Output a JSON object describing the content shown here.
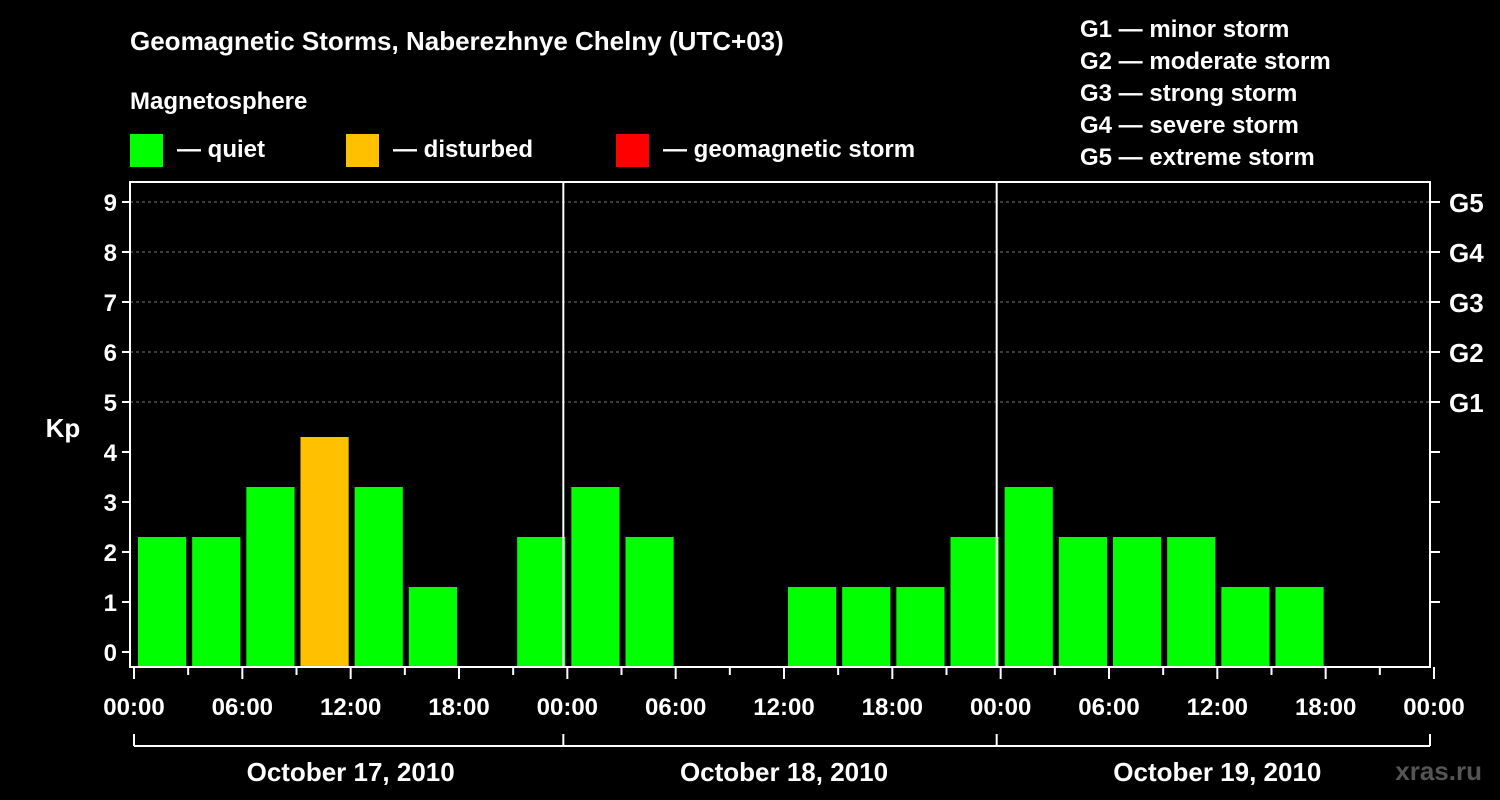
{
  "chart_data": {
    "type": "bar",
    "title": "Geomagnetic Storms, Naberezhnye Chelny (UTC+03)",
    "legend_title": "Magnetosphere",
    "legend": [
      {
        "label": "— quiet",
        "color": "#00ff00"
      },
      {
        "label": "— disturbed",
        "color": "#ffc000"
      },
      {
        "label": "— geomagnetic storm",
        "color": "#ff0000"
      }
    ],
    "storm_scale": [
      "G1 — minor storm",
      "G2 — moderate storm",
      "G3 — strong storm",
      "G4 — severe storm",
      "G5 — extreme storm"
    ],
    "ylabel": "Kp",
    "ylim": [
      0,
      9
    ],
    "yticks": [
      "0",
      "1",
      "2",
      "3",
      "4",
      "5",
      "6",
      "7",
      "8",
      "9"
    ],
    "right_ticks": [
      {
        "kp": 5,
        "label": "G1"
      },
      {
        "kp": 6,
        "label": "G2"
      },
      {
        "kp": 7,
        "label": "G3"
      },
      {
        "kp": 8,
        "label": "G4"
      },
      {
        "kp": 9,
        "label": "G5"
      }
    ],
    "xtick_labels": [
      "00:00",
      "06:00",
      "12:00",
      "18:00",
      "00:00",
      "06:00",
      "12:00",
      "18:00",
      "00:00",
      "06:00",
      "12:00",
      "18:00",
      "00:00"
    ],
    "days": [
      "October 17, 2010",
      "October 18, 2010",
      "October 19, 2010"
    ],
    "interval_hours": 3,
    "values": [
      2,
      2,
      3,
      4,
      3,
      1,
      null,
      2,
      3,
      2,
      null,
      null,
      1,
      1,
      1,
      2,
      3,
      2,
      2,
      2,
      1,
      1,
      null,
      null
    ],
    "thresholds": {
      "disturbed": 4,
      "storm": 5
    },
    "colors": {
      "quiet": "#00ff00",
      "disturbed": "#ffc000",
      "storm": "#ff0000"
    }
  },
  "watermark": "xras.ru"
}
